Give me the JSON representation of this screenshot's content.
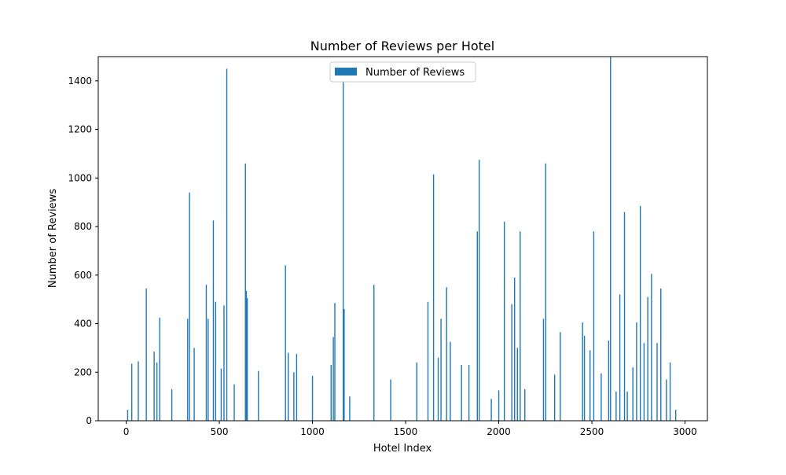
{
  "chart_data": {
    "type": "bar",
    "title": "Number of Reviews per Hotel",
    "xlabel": "Hotel Index",
    "ylabel": "Number of Reviews",
    "xlim": [
      -150,
      3120
    ],
    "ylim": [
      0,
      1500
    ],
    "xticks": [
      0,
      500,
      1000,
      1500,
      2000,
      2500,
      3000
    ],
    "yticks": [
      0,
      200,
      400,
      600,
      800,
      1000,
      1200,
      1400
    ],
    "grid": false,
    "legend": {
      "position": "top-center",
      "entries": [
        "Number of Reviews"
      ]
    },
    "bar_color": "#1f77b4",
    "series": [
      {
        "name": "Number of Reviews",
        "x": [
          8,
          30,
          65,
          108,
          150,
          165,
          180,
          245,
          330,
          340,
          365,
          430,
          440,
          468,
          480,
          510,
          525,
          540,
          580,
          640,
          645,
          650,
          710,
          855,
          870,
          900,
          915,
          1000,
          1100,
          1112,
          1120,
          1165,
          1170,
          1200,
          1330,
          1420,
          1560,
          1620,
          1650,
          1675,
          1690,
          1720,
          1740,
          1800,
          1840,
          1885,
          1895,
          1960,
          2000,
          2030,
          2070,
          2085,
          2100,
          2115,
          2140,
          2240,
          2252,
          2300,
          2330,
          2450,
          2460,
          2490,
          2510,
          2550,
          2590,
          2600,
          2630,
          2650,
          2675,
          2690,
          2720,
          2740,
          2760,
          2780,
          2800,
          2820,
          2850,
          2870,
          2900,
          2920,
          2950
        ],
        "values": [
          45,
          235,
          245,
          545,
          285,
          240,
          425,
          130,
          420,
          940,
          300,
          560,
          420,
          825,
          490,
          215,
          475,
          1450,
          150,
          1060,
          535,
          505,
          205,
          640,
          280,
          200,
          275,
          185,
          230,
          345,
          485,
          1400,
          460,
          100,
          560,
          170,
          240,
          490,
          1015,
          260,
          420,
          550,
          325,
          230,
          230,
          780,
          1075,
          90,
          125,
          820,
          480,
          590,
          300,
          780,
          130,
          420,
          1060,
          190,
          365,
          405,
          350,
          290,
          780,
          195,
          330,
          1500,
          120,
          520,
          860,
          120,
          220,
          405,
          885,
          320,
          510,
          605,
          320,
          545,
          170,
          240,
          45
        ]
      }
    ]
  }
}
